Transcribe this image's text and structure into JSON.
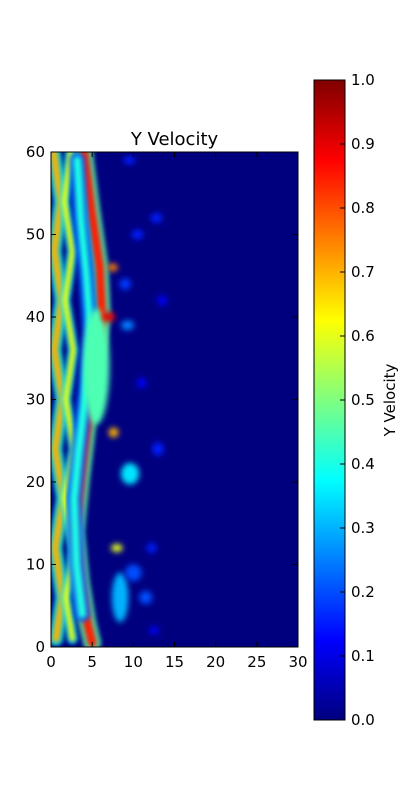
{
  "chart_data": {
    "type": "heatmap",
    "title": "Y Velocity",
    "xlabel": "",
    "ylabel": "",
    "xlim": [
      0,
      30
    ],
    "ylim": [
      0,
      60
    ],
    "x_ticks": [
      "0",
      "5",
      "10",
      "15",
      "20",
      "25",
      "30"
    ],
    "y_ticks": [
      "0",
      "10",
      "20",
      "30",
      "40",
      "50",
      "60"
    ],
    "colormap": "jet",
    "colorbar": {
      "label": "Y Velocity",
      "range": [
        0.0,
        1.0
      ],
      "ticks": [
        "0.0",
        "0.1",
        "0.2",
        "0.3",
        "0.4",
        "0.5",
        "0.6",
        "0.7",
        "0.8",
        "0.9",
        "1.0"
      ]
    },
    "grid": false,
    "features": [
      {
        "type": "strand",
        "points": [
          [
            0.3,
            60
          ],
          [
            1.2,
            54
          ],
          [
            0.4,
            48
          ],
          [
            1.3,
            42
          ],
          [
            0.4,
            36
          ],
          [
            1.4,
            30
          ],
          [
            0.5,
            24
          ],
          [
            1.5,
            18
          ],
          [
            0.5,
            12
          ],
          [
            1.4,
            6
          ],
          [
            0.6,
            1
          ]
        ],
        "value": 0.7,
        "width": 0.8
      },
      {
        "type": "strand",
        "points": [
          [
            2.4,
            60
          ],
          [
            1.6,
            54
          ],
          [
            2.6,
            48
          ],
          [
            1.7,
            42
          ],
          [
            2.7,
            36
          ],
          [
            1.8,
            30
          ],
          [
            2.8,
            24
          ],
          [
            1.6,
            18
          ],
          [
            2.9,
            12
          ],
          [
            1.8,
            6
          ],
          [
            2.6,
            1
          ]
        ],
        "value": 0.62,
        "width": 0.6
      },
      {
        "type": "strand",
        "points": [
          [
            4.0,
            60
          ],
          [
            4.9,
            53
          ],
          [
            5.9,
            46
          ],
          [
            6.2,
            40
          ],
          [
            5.2,
            33
          ],
          [
            4.3,
            26
          ],
          [
            3.6,
            20
          ],
          [
            3.0,
            14
          ],
          [
            3.6,
            8
          ],
          [
            4.4,
            3
          ],
          [
            5.0,
            0.5
          ]
        ],
        "value": 0.85,
        "width": 1.0
      },
      {
        "type": "strand",
        "points": [
          [
            3.2,
            59
          ],
          [
            3.6,
            52
          ],
          [
            4.3,
            45
          ],
          [
            4.8,
            38
          ],
          [
            4.2,
            31
          ],
          [
            3.4,
            24
          ],
          [
            2.8,
            18
          ],
          [
            3.1,
            10
          ],
          [
            3.8,
            4
          ]
        ],
        "value": 0.4,
        "width": 0.9
      },
      {
        "type": "blob",
        "x": 5.5,
        "y": 34,
        "rx": 1.6,
        "ry": 7,
        "value": 0.45
      },
      {
        "type": "blob",
        "x": 7.0,
        "y": 40,
        "rx": 0.8,
        "ry": 0.6,
        "value": 0.9
      },
      {
        "type": "blob",
        "x": 7.5,
        "y": 46,
        "rx": 0.6,
        "ry": 0.5,
        "value": 0.75
      },
      {
        "type": "blob",
        "x": 7.6,
        "y": 26,
        "rx": 0.6,
        "ry": 0.6,
        "value": 0.7
      },
      {
        "type": "blob",
        "x": 8.0,
        "y": 12,
        "rx": 0.7,
        "ry": 0.5,
        "value": 0.6
      },
      {
        "type": "blob",
        "x": 9.6,
        "y": 21,
        "rx": 1.1,
        "ry": 1.3,
        "value": 0.35
      },
      {
        "type": "blob",
        "x": 8.4,
        "y": 6,
        "rx": 1.0,
        "ry": 3,
        "value": 0.3
      },
      {
        "type": "blob",
        "x": 10.0,
        "y": 9,
        "rx": 1.0,
        "ry": 1.0,
        "value": 0.2
      },
      {
        "type": "blob",
        "x": 11.5,
        "y": 6,
        "rx": 0.8,
        "ry": 0.8,
        "value": 0.2
      },
      {
        "type": "blob",
        "x": 9.3,
        "y": 39,
        "rx": 0.8,
        "ry": 0.6,
        "value": 0.25
      },
      {
        "type": "blob",
        "x": 9.0,
        "y": 44,
        "rx": 0.7,
        "ry": 0.7,
        "value": 0.18
      },
      {
        "type": "blob",
        "x": 10.5,
        "y": 50,
        "rx": 0.7,
        "ry": 0.6,
        "value": 0.15
      },
      {
        "type": "blob",
        "x": 9.5,
        "y": 59,
        "rx": 0.7,
        "ry": 0.5,
        "value": 0.15
      },
      {
        "type": "blob",
        "x": 12.8,
        "y": 52,
        "rx": 0.7,
        "ry": 0.6,
        "value": 0.15
      },
      {
        "type": "blob",
        "x": 13.0,
        "y": 24,
        "rx": 0.7,
        "ry": 0.8,
        "value": 0.15
      },
      {
        "type": "blob",
        "x": 12.2,
        "y": 12,
        "rx": 0.6,
        "ry": 0.6,
        "value": 0.15
      },
      {
        "type": "blob",
        "x": 11.0,
        "y": 32,
        "rx": 0.6,
        "ry": 0.6,
        "value": 0.12
      },
      {
        "type": "blob",
        "x": 13.5,
        "y": 42,
        "rx": 0.6,
        "ry": 0.6,
        "value": 0.12
      },
      {
        "type": "blob",
        "x": 12.5,
        "y": 2,
        "rx": 0.6,
        "ry": 0.5,
        "value": 0.12
      }
    ]
  }
}
